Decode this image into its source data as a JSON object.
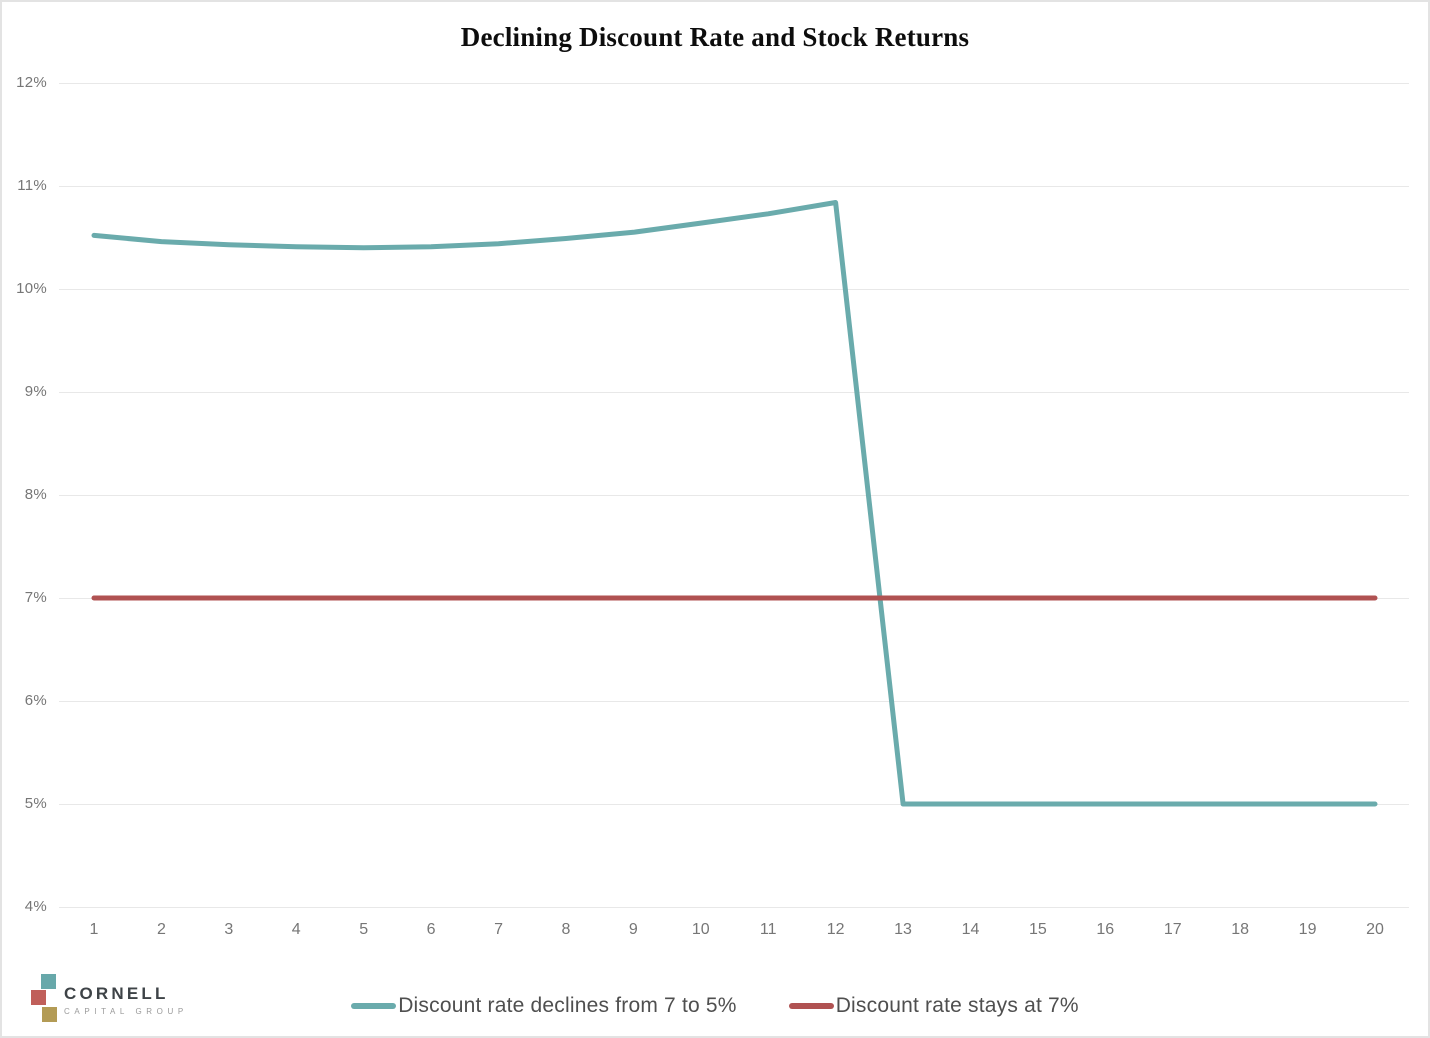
{
  "page": {
    "title": "Declining Discount Rate and Stock Returns"
  },
  "chart_data": {
    "type": "line",
    "title": "Declining Discount Rate and Stock Returns",
    "xlabel": "",
    "ylabel": "",
    "x": [
      1,
      2,
      3,
      4,
      5,
      6,
      7,
      8,
      9,
      10,
      11,
      12,
      13,
      14,
      15,
      16,
      17,
      18,
      19,
      20
    ],
    "xtick_labels": [
      "1",
      "2",
      "3",
      "4",
      "5",
      "6",
      "7",
      "8",
      "9",
      "10",
      "11",
      "12",
      "13",
      "14",
      "15",
      "16",
      "17",
      "18",
      "19",
      "20"
    ],
    "ylim": [
      4,
      12
    ],
    "yticks": [
      4,
      5,
      6,
      7,
      8,
      9,
      10,
      11,
      12
    ],
    "ytick_labels": [
      "4%",
      "5%",
      "6%",
      "7%",
      "8%",
      "9%",
      "10%",
      "11%",
      "12%"
    ],
    "grid": "horizontal",
    "legend_position": "bottom",
    "series": [
      {
        "name": "Discount rate declines from 7 to 5%",
        "color": "#6aabac",
        "values": [
          10.52,
          10.46,
          10.43,
          10.41,
          10.4,
          10.41,
          10.44,
          10.49,
          10.55,
          10.64,
          10.73,
          10.84,
          5.0,
          5.0,
          5.0,
          5.0,
          5.0,
          5.0,
          5.0,
          5.0
        ]
      },
      {
        "name": "Discount rate stays at 7%",
        "color": "#b05252",
        "values": [
          7.0,
          7.0,
          7.0,
          7.0,
          7.0,
          7.0,
          7.0,
          7.0,
          7.0,
          7.0,
          7.0,
          7.0,
          7.0,
          7.0,
          7.0,
          7.0,
          7.0,
          7.0,
          7.0,
          7.0
        ]
      }
    ]
  },
  "logo": {
    "wordmark": "CORNELL",
    "tagline": "CAPITAL GROUP",
    "square_colors": {
      "teal": "#67a8aa",
      "red": "#c05f5a",
      "gold": "#b39b55"
    }
  }
}
